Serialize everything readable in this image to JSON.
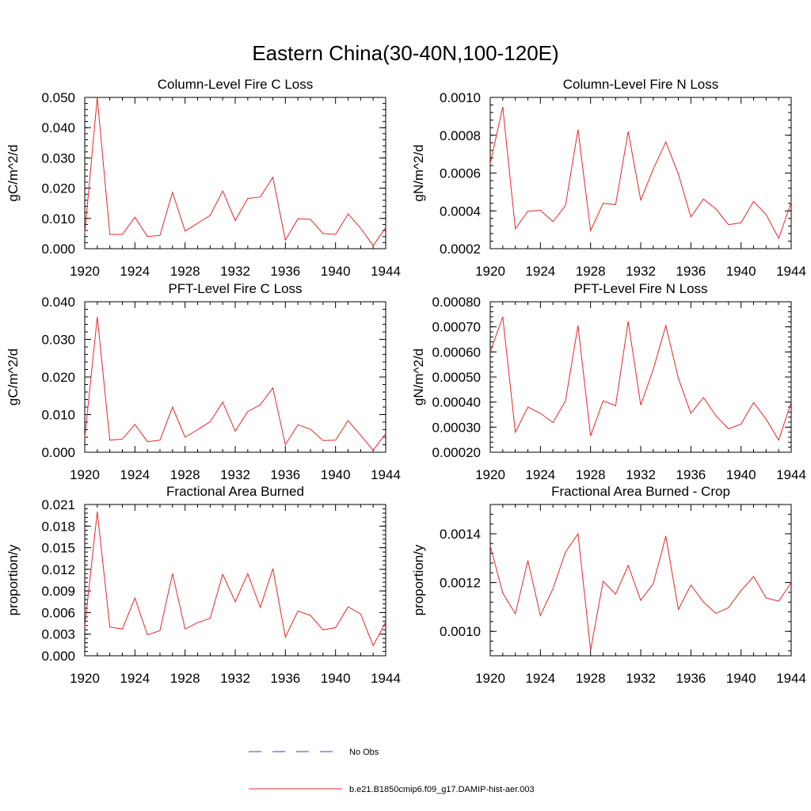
{
  "figure": {
    "title": "Eastern China(30-40N,100-120E)",
    "legend": [
      {
        "label": "No Obs",
        "color": "#3b3bd1",
        "style": "dashed"
      },
      {
        "label": "b.e21.B1850cmip6.f09_g17.DAMIP-hist-aer.003",
        "color": "#e8262b",
        "style": "solid"
      }
    ]
  },
  "chart_data": [
    {
      "type": "line",
      "title": "Column-Level Fire C Loss",
      "ylabel": "gC/m^2/d",
      "xlim": [
        1920,
        1944
      ],
      "xticks": [
        "1920",
        "1924",
        "1928",
        "1932",
        "1936",
        "1940",
        "1944"
      ],
      "ylim": [
        0,
        0.05
      ],
      "yticks": [
        "0.000",
        "0.010",
        "0.020",
        "0.030",
        "0.040",
        "0.050"
      ],
      "color": "#e8262b",
      "x": [
        1920,
        1921,
        1922,
        1923,
        1924,
        1925,
        1926,
        1927,
        1928,
        1929,
        1930,
        1931,
        1932,
        1933,
        1934,
        1935,
        1936,
        1937,
        1938,
        1939,
        1940,
        1941,
        1942,
        1943,
        1944
      ],
      "y": [
        0.005,
        0.05,
        0.0047,
        0.0047,
        0.0104,
        0.004,
        0.0044,
        0.0186,
        0.0058,
        0.0084,
        0.011,
        0.0191,
        0.0093,
        0.0166,
        0.0171,
        0.0236,
        0.0028,
        0.0099,
        0.0097,
        0.005,
        0.0047,
        0.0115,
        0.0068,
        0.001,
        0.007
      ]
    },
    {
      "type": "line",
      "title": "Column-Level Fire N Loss",
      "ylabel": "gN/m^2/d",
      "xlim": [
        1920,
        1944
      ],
      "xticks": [
        "1920",
        "1924",
        "1928",
        "1932",
        "1936",
        "1940",
        "1944"
      ],
      "ylim": [
        0.0002,
        0.001
      ],
      "yticks": [
        "0.0002",
        "0.0004",
        "0.0006",
        "0.0008",
        "0.0010"
      ],
      "color": "#e8262b",
      "x": [
        1920,
        1921,
        1922,
        1923,
        1924,
        1925,
        1926,
        1927,
        1928,
        1929,
        1930,
        1931,
        1932,
        1933,
        1934,
        1935,
        1936,
        1937,
        1938,
        1939,
        1940,
        1941,
        1942,
        1943,
        1944
      ],
      "y": [
        0.00065,
        0.00095,
        0.000305,
        0.000398,
        0.000403,
        0.000343,
        0.000428,
        0.00083,
        0.000295,
        0.00044,
        0.000433,
        0.00082,
        0.000457,
        0.00062,
        0.000765,
        0.000595,
        0.000368,
        0.000462,
        0.00041,
        0.000327,
        0.000337,
        0.00045,
        0.00038,
        0.000255,
        0.000445
      ]
    },
    {
      "type": "line",
      "title": "PFT-Level Fire C Loss",
      "ylabel": "gC/m^2/d",
      "xlim": [
        1920,
        1944
      ],
      "xticks": [
        "1920",
        "1924",
        "1928",
        "1932",
        "1936",
        "1940",
        "1944"
      ],
      "ylim": [
        0,
        0.04
      ],
      "yticks": [
        "0.000",
        "0.010",
        "0.020",
        "0.030",
        "0.040"
      ],
      "color": "#e8262b",
      "x": [
        1920,
        1921,
        1922,
        1923,
        1924,
        1925,
        1926,
        1927,
        1928,
        1929,
        1930,
        1931,
        1932,
        1933,
        1934,
        1935,
        1936,
        1937,
        1938,
        1939,
        1940,
        1941,
        1942,
        1943,
        1944
      ],
      "y": [
        0.0038,
        0.036,
        0.0032,
        0.0035,
        0.0074,
        0.0028,
        0.0032,
        0.012,
        0.004,
        0.006,
        0.0081,
        0.0133,
        0.0056,
        0.0108,
        0.0126,
        0.0171,
        0.002,
        0.0073,
        0.0061,
        0.0031,
        0.0032,
        0.0084,
        0.0045,
        0.0005,
        0.005
      ]
    },
    {
      "type": "line",
      "title": "PFT-Level Fire N Loss",
      "ylabel": "gN/m^2/d",
      "xlim": [
        1920,
        1944
      ],
      "xticks": [
        "1920",
        "1924",
        "1928",
        "1932",
        "1936",
        "1940",
        "1944"
      ],
      "ylim": [
        0.0002,
        0.0008
      ],
      "yticks": [
        "0.00020",
        "0.00030",
        "0.00040",
        "0.00050",
        "0.00060",
        "0.00070",
        "0.00080"
      ],
      "color": "#e8262b",
      "x": [
        1920,
        1921,
        1922,
        1923,
        1924,
        1925,
        1926,
        1927,
        1928,
        1929,
        1930,
        1931,
        1932,
        1933,
        1934,
        1935,
        1936,
        1937,
        1938,
        1939,
        1940,
        1941,
        1942,
        1943,
        1944
      ],
      "y": [
        0.0006,
        0.00074,
        0.00028,
        0.00038,
        0.000355,
        0.000318,
        0.000405,
        0.000705,
        0.000265,
        0.000405,
        0.000385,
        0.000722,
        0.000388,
        0.00053,
        0.000705,
        0.000495,
        0.000355,
        0.000418,
        0.000345,
        0.000293,
        0.000312,
        0.000398,
        0.000332,
        0.000248,
        0.0004
      ]
    },
    {
      "type": "line",
      "title": "Fractional Area Burned",
      "ylabel": "proportion/y",
      "xlim": [
        1920,
        1944
      ],
      "xticks": [
        "1920",
        "1924",
        "1928",
        "1932",
        "1936",
        "1940",
        "1944"
      ],
      "ylim": [
        0,
        0.021
      ],
      "yticks": [
        "0.000",
        "0.003",
        "0.006",
        "0.009",
        "0.012",
        "0.015",
        "0.018",
        "0.021"
      ],
      "color": "#e8262b",
      "x": [
        1920,
        1921,
        1922,
        1923,
        1924,
        1925,
        1926,
        1927,
        1928,
        1929,
        1930,
        1931,
        1932,
        1933,
        1934,
        1935,
        1936,
        1937,
        1938,
        1939,
        1940,
        1941,
        1942,
        1943,
        1944
      ],
      "y": [
        0.004,
        0.02,
        0.004,
        0.0037,
        0.008,
        0.0029,
        0.0035,
        0.0114,
        0.0037,
        0.0046,
        0.0052,
        0.0113,
        0.0075,
        0.0114,
        0.0067,
        0.0121,
        0.0026,
        0.0062,
        0.0056,
        0.0036,
        0.0039,
        0.0068,
        0.0058,
        0.0014,
        0.0047
      ]
    },
    {
      "type": "line",
      "title": "Fractional Area Burned - Crop",
      "ylabel": "proportion/y",
      "xlim": [
        1920,
        1944
      ],
      "xticks": [
        "1920",
        "1924",
        "1928",
        "1932",
        "1936",
        "1940",
        "1944"
      ],
      "ylim": [
        0.0009,
        0.00152
      ],
      "yticks": [
        "0.0010",
        "0.0012",
        "0.0014"
      ],
      "ytick_values": [
        0.001,
        0.0012,
        0.0014
      ],
      "color": "#e8262b",
      "x": [
        1920,
        1921,
        1922,
        1923,
        1924,
        1925,
        1926,
        1927,
        1928,
        1929,
        1930,
        1931,
        1932,
        1933,
        1934,
        1935,
        1936,
        1937,
        1938,
        1939,
        1940,
        1941,
        1942,
        1943,
        1944
      ],
      "y": [
        0.00135,
        0.001157,
        0.001072,
        0.00129,
        0.001065,
        0.001175,
        0.001325,
        0.0014,
        0.000923,
        0.001205,
        0.001153,
        0.00127,
        0.001127,
        0.001195,
        0.00139,
        0.00109,
        0.00119,
        0.00112,
        0.001074,
        0.001097,
        0.001167,
        0.001225,
        0.001137,
        0.001124,
        0.0012
      ]
    }
  ]
}
